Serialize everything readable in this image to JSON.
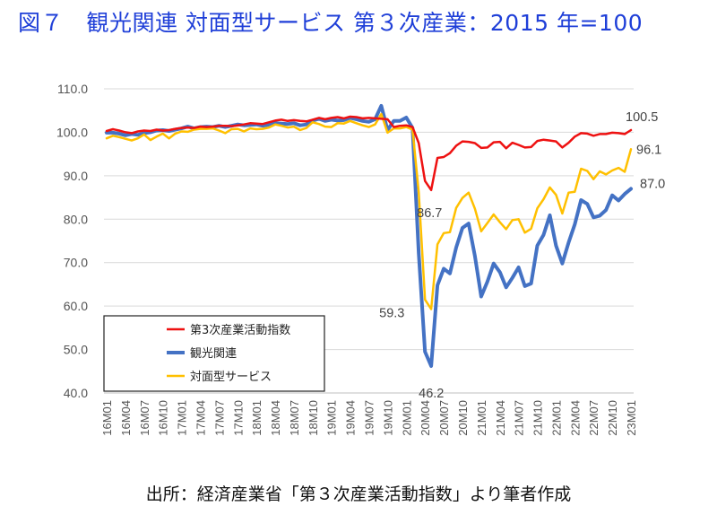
{
  "figure_title": "図７　観光関連 対面型サービス 第３次産業：2015 年=100",
  "source": "出所：経済産業省「第３次産業活動指数」より筆者作成",
  "chart_data": {
    "type": "line",
    "title": "",
    "xlabel": "",
    "ylabel": "",
    "ylim": [
      40,
      110
    ],
    "yticks": [
      "40.0",
      "50.0",
      "60.0",
      "70.0",
      "80.0",
      "90.0",
      "100.0",
      "110.0"
    ],
    "grid": true,
    "legend_position": "bottom-left",
    "x": [
      "16M01",
      "16M02",
      "16M03",
      "16M04",
      "16M05",
      "16M06",
      "16M07",
      "16M08",
      "16M09",
      "16M10",
      "16M11",
      "16M12",
      "17M01",
      "17M02",
      "17M03",
      "17M04",
      "17M05",
      "17M06",
      "17M07",
      "17M08",
      "17M09",
      "17M10",
      "17M11",
      "17M12",
      "18M01",
      "18M02",
      "18M03",
      "18M04",
      "18M05",
      "18M06",
      "18M07",
      "18M08",
      "18M09",
      "18M10",
      "18M11",
      "18M12",
      "19M01",
      "19M02",
      "19M03",
      "19M04",
      "19M05",
      "19M06",
      "19M07",
      "19M08",
      "19M09",
      "19M10",
      "19M11",
      "19M12",
      "20M01",
      "20M02",
      "20M03",
      "20M04",
      "20M05",
      "20M06",
      "20M07",
      "20M08",
      "20M09",
      "20M10",
      "20M11",
      "20M12",
      "21M01",
      "21M02",
      "21M03",
      "21M04",
      "21M05",
      "21M06",
      "21M07",
      "21M08",
      "21M09",
      "21M10",
      "21M11",
      "21M12",
      "22M01",
      "22M02",
      "22M03",
      "22M04",
      "22M05",
      "22M06",
      "22M07",
      "22M08",
      "22M09",
      "22M10",
      "22M11",
      "22M12",
      "23M01"
    ],
    "xtick_labels": [
      "16M01",
      "16M04",
      "16M07",
      "16M10",
      "17M01",
      "17M04",
      "17M07",
      "17M10",
      "18M01",
      "18M04",
      "18M07",
      "18M10",
      "19M01",
      "19M04",
      "19M07",
      "19M10",
      "20M01",
      "20M04",
      "20M07",
      "20M10",
      "21M01",
      "21M04",
      "21M07",
      "21M10",
      "22M01",
      "22M04",
      "22M07",
      "22M10",
      "23M01"
    ],
    "series": [
      {
        "name": "第3次産業活動指数",
        "color": "#ee1111",
        "width": 2.5,
        "values": [
          100.3,
          100.7,
          100.4,
          100.0,
          99.8,
          100.2,
          100.4,
          100.3,
          100.6,
          100.4,
          100.5,
          100.8,
          101.0,
          101.1,
          101.0,
          101.3,
          101.2,
          101.3,
          101.5,
          101.5,
          101.4,
          101.6,
          101.8,
          102.1,
          102.0,
          101.9,
          102.3,
          102.7,
          102.9,
          102.6,
          102.8,
          102.6,
          102.5,
          102.9,
          103.3,
          103.0,
          103.3,
          103.5,
          103.2,
          103.6,
          103.5,
          103.2,
          103.3,
          103.2,
          103.1,
          103.0,
          101.2,
          101.5,
          101.6,
          101.2,
          97.5,
          88.8,
          86.7,
          94.1,
          94.3,
          95.2,
          96.9,
          97.9,
          97.8,
          97.5,
          96.4,
          96.5,
          97.7,
          97.8,
          96.3,
          97.6,
          97.1,
          96.5,
          96.6,
          98.0,
          98.3,
          98.1,
          97.9,
          96.5,
          97.6,
          99.0,
          99.8,
          99.7,
          99.2,
          99.6,
          99.6,
          99.9,
          99.8,
          99.6,
          100.5
        ]
      },
      {
        "name": "観光関連",
        "color": "#4472c4",
        "width": 4,
        "values": [
          99.9,
          99.9,
          99.7,
          99.3,
          99.6,
          99.4,
          99.8,
          100.0,
          100.4,
          100.5,
          100.3,
          100.6,
          100.9,
          101.3,
          100.9,
          101.2,
          101.3,
          101.2,
          101.5,
          101.2,
          101.5,
          101.8,
          101.6,
          101.7,
          101.8,
          101.5,
          101.7,
          102.1,
          102.0,
          101.9,
          102.1,
          101.6,
          101.8,
          102.7,
          103.1,
          102.6,
          102.9,
          102.7,
          102.8,
          103.3,
          103.0,
          102.6,
          102.4,
          103.0,
          106.1,
          100.5,
          102.6,
          102.6,
          103.4,
          101.0,
          72.2,
          49.5,
          46.2,
          64.8,
          68.6,
          67.5,
          73.5,
          78.0,
          79.0,
          71.5,
          62.2,
          65.6,
          69.8,
          67.8,
          64.3,
          66.5,
          68.9,
          64.6,
          65.2,
          73.9,
          76.4,
          80.9,
          73.9,
          69.8,
          74.6,
          78.8,
          84.4,
          83.5,
          80.4,
          80.8,
          82.1,
          85.5,
          84.3,
          85.8,
          87.0
        ]
      },
      {
        "name": "対面型サービス",
        "color": "#ffc000",
        "width": 2.5,
        "values": [
          98.6,
          99.2,
          98.9,
          98.5,
          98.1,
          98.6,
          99.5,
          98.2,
          99.0,
          99.7,
          98.6,
          99.7,
          100.2,
          100.1,
          100.6,
          100.8,
          100.8,
          100.9,
          100.4,
          99.8,
          100.7,
          100.8,
          100.2,
          100.9,
          100.7,
          100.8,
          101.1,
          101.8,
          101.5,
          101.1,
          101.3,
          100.5,
          101.0,
          102.3,
          101.9,
          101.3,
          101.2,
          102.1,
          102.0,
          102.6,
          102.1,
          101.6,
          101.2,
          101.8,
          104.2,
          99.9,
          100.9,
          100.9,
          101.2,
          100.6,
          86.2,
          61.5,
          59.3,
          74.2,
          76.8,
          77.0,
          82.6,
          84.9,
          86.1,
          82.4,
          77.2,
          79.1,
          81.1,
          79.3,
          77.7,
          79.8,
          80.0,
          76.9,
          77.8,
          82.5,
          84.6,
          87.3,
          85.6,
          81.3,
          86.1,
          86.3,
          91.6,
          91.1,
          89.2,
          91.0,
          90.3,
          91.2,
          91.8,
          90.9,
          96.1
        ]
      }
    ],
    "annotations": [
      {
        "text": "100.5",
        "series": 0,
        "index": 84,
        "dx": -6,
        "dy": -15,
        "anchor": "start"
      },
      {
        "text": "96.1",
        "series": 2,
        "index": 84,
        "dx": 6,
        "dy": 0,
        "anchor": "start"
      },
      {
        "text": "87.0",
        "series": 1,
        "index": 84,
        "dx": 10,
        "dy": -6,
        "anchor": "start"
      },
      {
        "text": "86.7",
        "series": 0,
        "index": 52,
        "dx": -16,
        "dy": 25,
        "anchor": "start"
      },
      {
        "text": "59.3",
        "series": 2,
        "index": 52,
        "dx": -58,
        "dy": 4,
        "anchor": "start"
      },
      {
        "text": "46.2",
        "series": 1,
        "index": 52,
        "dx": -14,
        "dy": 30,
        "anchor": "start"
      }
    ]
  }
}
